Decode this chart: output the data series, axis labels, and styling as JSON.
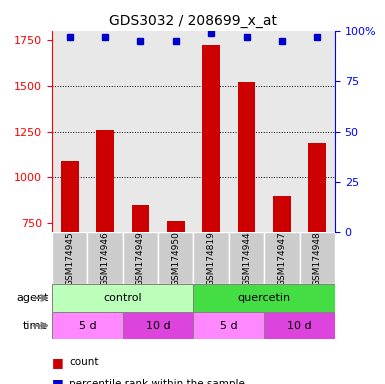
{
  "title": "GDS3032 / 208699_x_at",
  "samples": [
    "GSM174945",
    "GSM174946",
    "GSM174949",
    "GSM174950",
    "GSM174819",
    "GSM174944",
    "GSM174947",
    "GSM174948"
  ],
  "count_values": [
    1090,
    1260,
    850,
    760,
    1720,
    1520,
    900,
    1190
  ],
  "percentile_values": [
    97,
    97,
    95,
    95,
    99,
    97,
    95,
    97
  ],
  "y_min": 700,
  "y_max": 1800,
  "y_ticks": [
    750,
    1000,
    1250,
    1500,
    1750
  ],
  "y_right_ticks": [
    0,
    25,
    50,
    75,
    100
  ],
  "y_right_labels": [
    "0",
    "25",
    "50",
    "75",
    "100%"
  ],
  "bar_color": "#cc0000",
  "dot_color": "#0000cc",
  "agent_control_color": "#bbffbb",
  "agent_quercetin_color": "#44dd44",
  "time_5d_color": "#ff88ff",
  "time_10d_color": "#dd44dd",
  "agent_labels": [
    "control",
    "quercetin"
  ],
  "time_labels": [
    "5 d",
    "10 d",
    "5 d",
    "10 d"
  ],
  "legend_count": "count",
  "legend_pct": "percentile rank within the sample",
  "background_color": "#ffffff",
  "grid_color": "#000000",
  "sample_bg_color": "#cccccc"
}
